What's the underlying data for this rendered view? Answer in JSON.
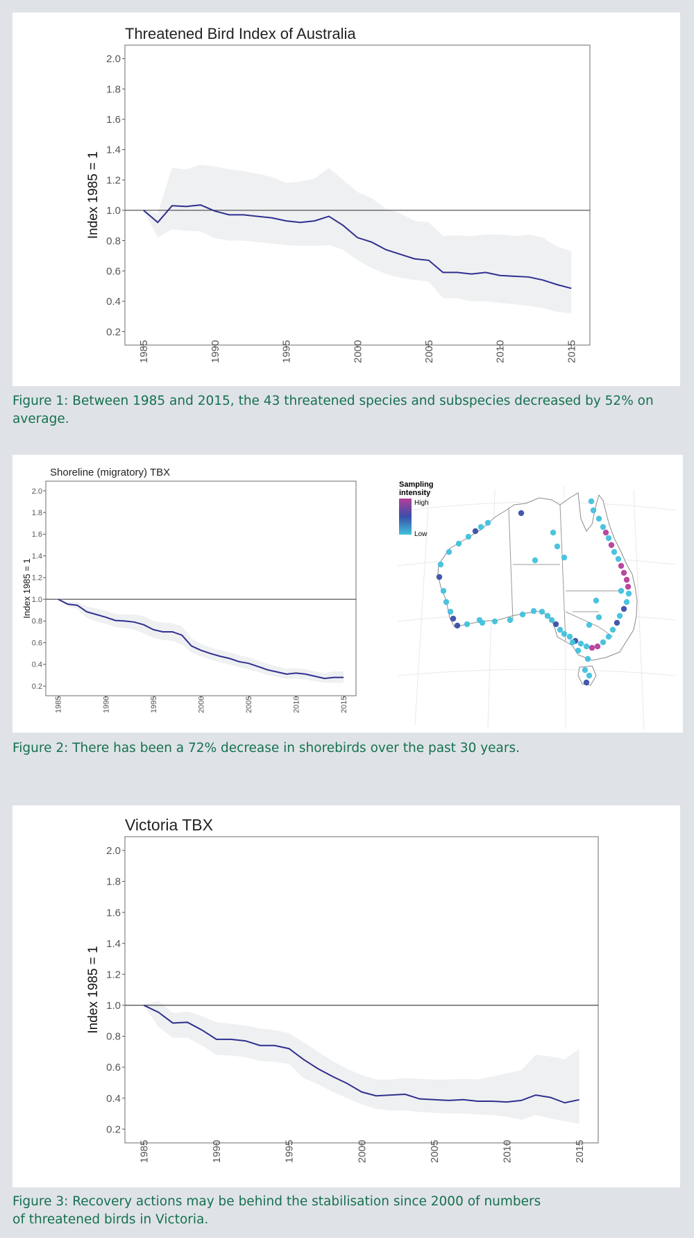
{
  "colors": {
    "line": "#2f2f8f",
    "band": "#eff0f2",
    "caption": "#15704f",
    "background": "#dfe3e7",
    "map_point": "#41c1dc",
    "map_point_mid": "#3a4fa8",
    "map_point_high": "#b43e9b"
  },
  "chart_data": [
    {
      "type": "line",
      "title": "Threatened Bird Index of Australia",
      "ylabel": "Index 1985 = 1",
      "xlabel": "",
      "xlim": [
        1985,
        2015
      ],
      "ylim": [
        0.2,
        2.0
      ],
      "xticks": [
        "1985",
        "1990",
        "1995",
        "2000",
        "2005",
        "2010",
        "2015"
      ],
      "yticks": [
        "0.2",
        "0.4",
        "0.6",
        "0.8",
        "1.0",
        "1.2",
        "1.4",
        "1.6",
        "1.8",
        "2.0"
      ],
      "reference_line": 1.0,
      "grid": false,
      "series": [
        {
          "x": [
            1985,
            1986,
            1987,
            1988,
            1989,
            1990,
            1991,
            1992,
            1993,
            1994,
            1995,
            1996,
            1997,
            1998,
            1999,
            2000,
            2001,
            2002,
            2003,
            2004,
            2005,
            2006,
            2007,
            2008,
            2009,
            2010,
            2011,
            2012,
            2013,
            2014,
            2015
          ],
          "y": [
            1.0,
            0.92,
            1.03,
            1.025,
            1.035,
            0.995,
            0.97,
            0.97,
            0.96,
            0.95,
            0.93,
            0.92,
            0.93,
            0.96,
            0.9,
            0.82,
            0.79,
            0.74,
            0.71,
            0.68,
            0.67,
            0.59,
            0.59,
            0.58,
            0.59,
            0.57,
            0.565,
            0.56,
            0.54,
            0.51,
            0.485
          ],
          "lower": [
            1.0,
            0.82,
            0.875,
            0.865,
            0.86,
            0.815,
            0.8,
            0.8,
            0.79,
            0.78,
            0.77,
            0.765,
            0.765,
            0.77,
            0.74,
            0.67,
            0.62,
            0.58,
            0.555,
            0.54,
            0.53,
            0.42,
            0.42,
            0.4,
            0.4,
            0.39,
            0.38,
            0.37,
            0.355,
            0.33,
            0.32
          ],
          "upper": [
            1.0,
            0.98,
            1.28,
            1.27,
            1.3,
            1.29,
            1.27,
            1.26,
            1.24,
            1.22,
            1.18,
            1.19,
            1.21,
            1.28,
            1.2,
            1.12,
            1.08,
            1.01,
            0.98,
            0.93,
            0.92,
            0.83,
            0.835,
            0.83,
            0.84,
            0.84,
            0.83,
            0.84,
            0.82,
            0.76,
            0.73
          ]
        }
      ]
    },
    {
      "type": "line",
      "title": "Shoreline (migratory) TBX",
      "ylabel": "Index 1985 = 1",
      "xlabel": "",
      "xlim": [
        1985,
        2015
      ],
      "ylim": [
        0.2,
        2.0
      ],
      "xticks": [
        "1985",
        "1990",
        "1995",
        "2000",
        "2005",
        "2010",
        "2015"
      ],
      "yticks": [
        "0.2",
        "0.4",
        "0.6",
        "0.8",
        "1.0",
        "1.2",
        "1.4",
        "1.6",
        "1.8",
        "2.0"
      ],
      "reference_line": 1.0,
      "grid": false,
      "series": [
        {
          "x": [
            1985,
            1986,
            1987,
            1988,
            1989,
            1990,
            1991,
            1992,
            1993,
            1994,
            1995,
            1996,
            1997,
            1998,
            1999,
            2000,
            2001,
            2002,
            2003,
            2004,
            2005,
            2006,
            2007,
            2008,
            2009,
            2010,
            2011,
            2012,
            2013,
            2014,
            2015
          ],
          "y": [
            1.0,
            0.955,
            0.945,
            0.885,
            0.86,
            0.835,
            0.805,
            0.8,
            0.79,
            0.765,
            0.72,
            0.7,
            0.7,
            0.67,
            0.57,
            0.53,
            0.5,
            0.475,
            0.455,
            0.425,
            0.41,
            0.38,
            0.35,
            0.33,
            0.31,
            0.32,
            0.31,
            0.29,
            0.27,
            0.28,
            0.28
          ],
          "lower": [
            1.0,
            0.94,
            0.91,
            0.83,
            0.795,
            0.775,
            0.745,
            0.735,
            0.72,
            0.685,
            0.645,
            0.625,
            0.615,
            0.585,
            0.51,
            0.475,
            0.445,
            0.42,
            0.4,
            0.375,
            0.355,
            0.33,
            0.305,
            0.285,
            0.265,
            0.27,
            0.26,
            0.245,
            0.23,
            0.23,
            0.23
          ],
          "upper": [
            1.0,
            0.975,
            0.975,
            0.935,
            0.915,
            0.895,
            0.865,
            0.86,
            0.86,
            0.845,
            0.8,
            0.785,
            0.78,
            0.75,
            0.64,
            0.59,
            0.555,
            0.53,
            0.51,
            0.485,
            0.465,
            0.435,
            0.405,
            0.38,
            0.36,
            0.365,
            0.355,
            0.335,
            0.32,
            0.335,
            0.335
          ]
        }
      ]
    },
    {
      "type": "line",
      "title": "Victoria TBX",
      "ylabel": "Index 1985 = 1",
      "xlabel": "",
      "xlim": [
        1985,
        2015
      ],
      "ylim": [
        0.2,
        2.0
      ],
      "xticks": [
        "1985",
        "1990",
        "1995",
        "2000",
        "2005",
        "2010",
        "2015"
      ],
      "yticks": [
        "0.2",
        "0.4",
        "0.6",
        "0.8",
        "1.0",
        "1.2",
        "1.4",
        "1.6",
        "1.8",
        "2.0"
      ],
      "reference_line": 1.0,
      "grid": false,
      "series": [
        {
          "x": [
            1985,
            1986,
            1987,
            1988,
            1989,
            1990,
            1991,
            1992,
            1993,
            1994,
            1995,
            1996,
            1997,
            1998,
            1999,
            2000,
            2001,
            2002,
            2003,
            2004,
            2005,
            2006,
            2007,
            2008,
            2009,
            2010,
            2011,
            2012,
            2013,
            2014,
            2015
          ],
          "y": [
            1.0,
            0.955,
            0.885,
            0.89,
            0.84,
            0.78,
            0.78,
            0.77,
            0.74,
            0.74,
            0.72,
            0.65,
            0.59,
            0.54,
            0.495,
            0.44,
            0.415,
            0.42,
            0.425,
            0.395,
            0.39,
            0.385,
            0.39,
            0.38,
            0.38,
            0.375,
            0.385,
            0.42,
            0.405,
            0.37,
            0.39
          ],
          "lower": [
            1.0,
            0.86,
            0.79,
            0.79,
            0.74,
            0.68,
            0.675,
            0.665,
            0.64,
            0.635,
            0.62,
            0.53,
            0.49,
            0.44,
            0.4,
            0.36,
            0.33,
            0.32,
            0.32,
            0.31,
            0.305,
            0.3,
            0.3,
            0.295,
            0.29,
            0.28,
            0.26,
            0.29,
            0.27,
            0.25,
            0.235
          ],
          "upper": [
            1.0,
            1.03,
            0.95,
            0.96,
            0.93,
            0.89,
            0.88,
            0.87,
            0.85,
            0.84,
            0.82,
            0.76,
            0.7,
            0.64,
            0.59,
            0.55,
            0.52,
            0.52,
            0.53,
            0.525,
            0.52,
            0.52,
            0.525,
            0.52,
            0.54,
            0.56,
            0.58,
            0.68,
            0.67,
            0.65,
            0.72
          ]
        }
      ]
    }
  ],
  "map": {
    "legend_title": "Sampling intensity",
    "legend_high": "High",
    "legend_low": "Low"
  },
  "captions": [
    "Figure 1: Between 1985 and 2015, the 43 threatened species and subspecies decreased by 52% on average.",
    "Figure 2: There has been a 72% decrease in shorebirds over the past 30 years.",
    "Figure 3: Recovery actions may be behind the stabilisation since 2000 of numbers of threatened birds in Victoria."
  ]
}
